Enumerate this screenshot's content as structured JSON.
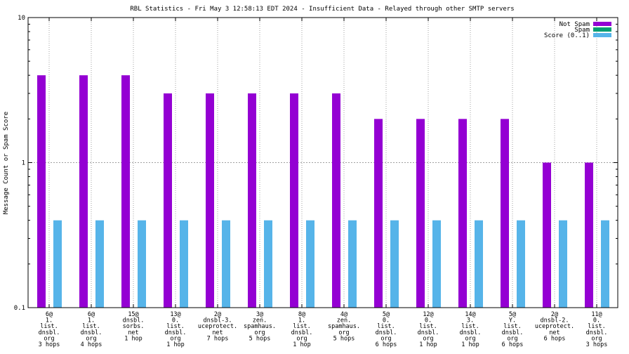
{
  "chart_data": {
    "type": "bar",
    "title": "RBL Statistics - Fri May  3 12:58:13 EDT 2024 - Insufficient Data - Relayed through other SMTP servers",
    "xlabel": "",
    "ylabel": "Message Count or Spam Score",
    "yscale": "log",
    "ylim": [
      0.1,
      10
    ],
    "yticks": [
      "0.1",
      "1",
      "10"
    ],
    "grid": true,
    "legend_position": "top-right",
    "categories": [
      [
        "6@",
        "1.",
        "list.",
        "dnsbl.",
        "org",
        "3 hops"
      ],
      [
        "6@",
        "1.",
        "list.",
        "dnsbl.",
        "org",
        "4 hops"
      ],
      [
        "15@",
        "dnsbl.",
        "sorbs.",
        "net",
        "1 hop"
      ],
      [
        "13@",
        "0.",
        "list.",
        "dnsbl.",
        "org",
        "1 hop"
      ],
      [
        "2@",
        "dnsbl-3.",
        "uceprotect.",
        "net",
        "7 hops"
      ],
      [
        "3@",
        "zen.",
        "spamhaus.",
        "org",
        "5 hops"
      ],
      [
        "8@",
        "1.",
        "list.",
        "dnsbl.",
        "org",
        "1 hop"
      ],
      [
        "4@",
        "zen.",
        "spamhaus.",
        "org",
        "5 hops"
      ],
      [
        "5@",
        "0.",
        "list.",
        "dnsbl.",
        "org",
        "6 hops"
      ],
      [
        "12@",
        "0.",
        "list.",
        "dnsbl.",
        "org",
        "1 hop"
      ],
      [
        "14@",
        "3.",
        "list.",
        "dnsbl.",
        "org",
        "1 hop"
      ],
      [
        "5@",
        "Y.",
        "list.",
        "dnsbl.",
        "org",
        "6 hops"
      ],
      [
        "2@",
        "dnsbl-2.",
        "uceprotect.",
        "net",
        "6 hops"
      ],
      [
        "11@",
        "0.",
        "list.",
        "dnsbl.",
        "org",
        "3 hops"
      ]
    ],
    "series": [
      {
        "name": "Not Spam",
        "color": "#9400d3",
        "values": [
          4,
          4,
          4,
          3,
          3,
          3,
          3,
          3,
          2,
          2,
          2,
          2,
          1,
          1
        ]
      },
      {
        "name": "Spam",
        "color": "#009e73",
        "values": [
          0,
          0,
          0,
          0,
          0,
          0,
          0,
          0,
          0,
          0,
          0,
          0,
          0,
          0
        ]
      },
      {
        "name": "Score (0..1)",
        "color": "#56b4e9",
        "values": [
          0.4,
          0.4,
          0.4,
          0.4,
          0.4,
          0.4,
          0.4,
          0.4,
          0.4,
          0.4,
          0.4,
          0.4,
          0.4,
          0.4
        ]
      }
    ]
  }
}
